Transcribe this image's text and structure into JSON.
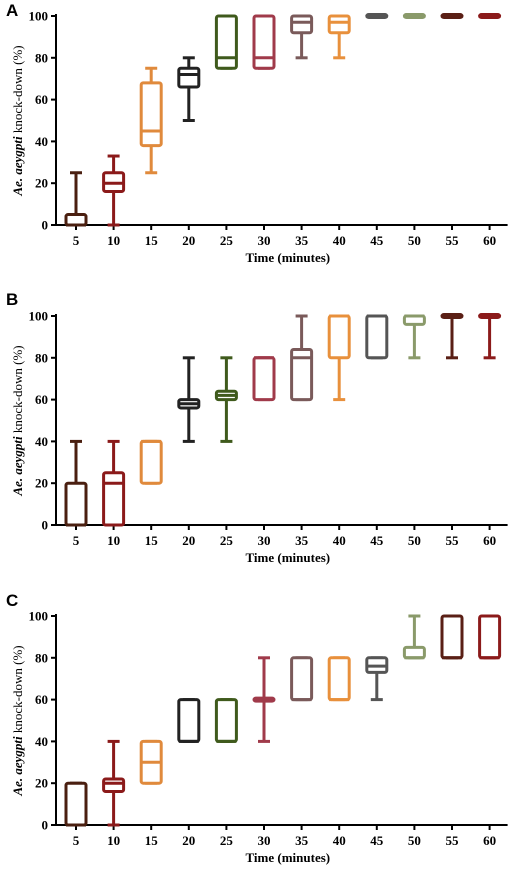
{
  "chart_data": [
    {
      "type": "box",
      "panel_label": "A",
      "xlabel": "Time (minutes)",
      "ylabel_italic": "Ae. aeygpti",
      "ylabel_rest": " knock-down (%)",
      "ylim": [
        0,
        100
      ],
      "yticks": [
        0,
        20,
        40,
        60,
        80,
        100
      ],
      "categories": [
        "5",
        "10",
        "15",
        "20",
        "25",
        "30",
        "35",
        "40",
        "45",
        "50",
        "55",
        "60"
      ],
      "boxes": [
        {
          "x": "5",
          "min": 0,
          "q1": 0,
          "median": 0,
          "q3": 5,
          "max": 25,
          "color": "#4a1f10"
        },
        {
          "x": "10",
          "min": 0,
          "q1": 16,
          "median": 20,
          "q3": 25,
          "max": 33,
          "color": "#8b1a1a"
        },
        {
          "x": "15",
          "min": 25,
          "q1": 38,
          "median": 45,
          "q3": 68,
          "max": 75,
          "color": "#e08a3c"
        },
        {
          "x": "20",
          "min": 50,
          "q1": 66,
          "median": 72,
          "q3": 75,
          "max": 80,
          "color": "#222222"
        },
        {
          "x": "25",
          "min": 75,
          "q1": 75,
          "median": 80,
          "q3": 100,
          "max": 100,
          "color": "#3f5a1c"
        },
        {
          "x": "30",
          "min": 75,
          "q1": 75,
          "median": 80,
          "q3": 100,
          "max": 100,
          "color": "#a03a4a"
        },
        {
          "x": "35",
          "min": 80,
          "q1": 92,
          "median": 97,
          "q3": 100,
          "max": 100,
          "color": "#7a5a5a"
        },
        {
          "x": "40",
          "min": 80,
          "q1": 92,
          "median": 97,
          "q3": 100,
          "max": 100,
          "color": "#e8903c"
        },
        {
          "x": "45",
          "min": 100,
          "q1": 100,
          "median": 100,
          "q3": 100,
          "max": 100,
          "color": "#555555"
        },
        {
          "x": "50",
          "min": 100,
          "q1": 100,
          "median": 100,
          "q3": 100,
          "max": 100,
          "color": "#8a9a6a"
        },
        {
          "x": "55",
          "min": 100,
          "q1": 100,
          "median": 100,
          "q3": 100,
          "max": 100,
          "color": "#5a1f15"
        },
        {
          "x": "60",
          "min": 100,
          "q1": 100,
          "median": 100,
          "q3": 100,
          "max": 100,
          "color": "#8b1a1a"
        }
      ]
    },
    {
      "type": "box",
      "panel_label": "B",
      "xlabel": "Time (minutes)",
      "ylabel_italic": "Ae. aeygpti",
      "ylabel_rest": " knock-down (%)",
      "ylim": [
        0,
        100
      ],
      "yticks": [
        0,
        20,
        40,
        60,
        80,
        100
      ],
      "categories": [
        "5",
        "10",
        "15",
        "20",
        "25",
        "30",
        "35",
        "40",
        "45",
        "50",
        "55",
        "60"
      ],
      "boxes": [
        {
          "x": "5",
          "min": 0,
          "q1": 0,
          "median": 0,
          "q3": 20,
          "max": 40,
          "color": "#4a1f10"
        },
        {
          "x": "10",
          "min": 0,
          "q1": 0,
          "median": 20,
          "q3": 25,
          "max": 40,
          "color": "#8b1a1a"
        },
        {
          "x": "15",
          "min": 20,
          "q1": 20,
          "median": 40,
          "q3": 40,
          "max": 40,
          "color": "#e08a3c"
        },
        {
          "x": "20",
          "min": 40,
          "q1": 56,
          "median": 58,
          "q3": 60,
          "max": 80,
          "color": "#222222"
        },
        {
          "x": "25",
          "min": 40,
          "q1": 60,
          "median": 62,
          "q3": 64,
          "max": 80,
          "color": "#3f5a1c"
        },
        {
          "x": "30",
          "min": 60,
          "q1": 60,
          "median": 80,
          "q3": 80,
          "max": 80,
          "color": "#a03a4a"
        },
        {
          "x": "35",
          "min": 60,
          "q1": 60,
          "median": 80,
          "q3": 84,
          "max": 100,
          "color": "#7a5a5a"
        },
        {
          "x": "40",
          "min": 60,
          "q1": 80,
          "median": 100,
          "q3": 100,
          "max": 100,
          "color": "#e8903c"
        },
        {
          "x": "45",
          "min": 80,
          "q1": 80,
          "median": 100,
          "q3": 100,
          "max": 100,
          "color": "#555555"
        },
        {
          "x": "50",
          "min": 80,
          "q1": 96,
          "median": 100,
          "q3": 100,
          "max": 100,
          "color": "#8a9a6a"
        },
        {
          "x": "55",
          "min": 80,
          "q1": 100,
          "median": 100,
          "q3": 100,
          "max": 100,
          "color": "#5a1f15"
        },
        {
          "x": "60",
          "min": 80,
          "q1": 100,
          "median": 100,
          "q3": 100,
          "max": 100,
          "color": "#8b1a1a"
        }
      ]
    },
    {
      "type": "box",
      "panel_label": "C",
      "xlabel": "Time (minutes)",
      "ylabel_italic": "Ae. aeygpti",
      "ylabel_rest": " knock-down (%)",
      "ylim": [
        0,
        100
      ],
      "yticks": [
        0,
        20,
        40,
        60,
        80,
        100
      ],
      "categories": [
        "5",
        "10",
        "15",
        "20",
        "25",
        "30",
        "35",
        "40",
        "45",
        "50",
        "55",
        "60"
      ],
      "boxes": [
        {
          "x": "5",
          "min": 0,
          "q1": 0,
          "median": 0,
          "q3": 20,
          "max": 20,
          "color": "#4a1f10"
        },
        {
          "x": "10",
          "min": 0,
          "q1": 16,
          "median": 20,
          "q3": 22,
          "max": 40,
          "color": "#8b1a1a"
        },
        {
          "x": "15",
          "min": 20,
          "q1": 20,
          "median": 30,
          "q3": 40,
          "max": 40,
          "color": "#e08a3c"
        },
        {
          "x": "20",
          "min": 40,
          "q1": 40,
          "median": 40,
          "q3": 60,
          "max": 60,
          "color": "#222222"
        },
        {
          "x": "25",
          "min": 40,
          "q1": 40,
          "median": 40,
          "q3": 60,
          "max": 60,
          "color": "#3f5a1c"
        },
        {
          "x": "30",
          "min": 40,
          "q1": 60,
          "median": 60,
          "q3": 60,
          "max": 80,
          "color": "#a03a4a"
        },
        {
          "x": "35",
          "min": 60,
          "q1": 60,
          "median": 60,
          "q3": 80,
          "max": 80,
          "color": "#7a5a5a"
        },
        {
          "x": "40",
          "min": 60,
          "q1": 60,
          "median": 60,
          "q3": 80,
          "max": 80,
          "color": "#e8903c"
        },
        {
          "x": "45",
          "min": 60,
          "q1": 73,
          "median": 76,
          "q3": 80,
          "max": 80,
          "color": "#555555"
        },
        {
          "x": "50",
          "min": 80,
          "q1": 80,
          "median": 80,
          "q3": 85,
          "max": 100,
          "color": "#8a9a6a"
        },
        {
          "x": "55",
          "min": 80,
          "q1": 80,
          "median": 80,
          "q3": 100,
          "max": 100,
          "color": "#5a1f15"
        },
        {
          "x": "60",
          "min": 80,
          "q1": 80,
          "median": 80,
          "q3": 100,
          "max": 100,
          "color": "#8b1a1a"
        }
      ]
    }
  ]
}
